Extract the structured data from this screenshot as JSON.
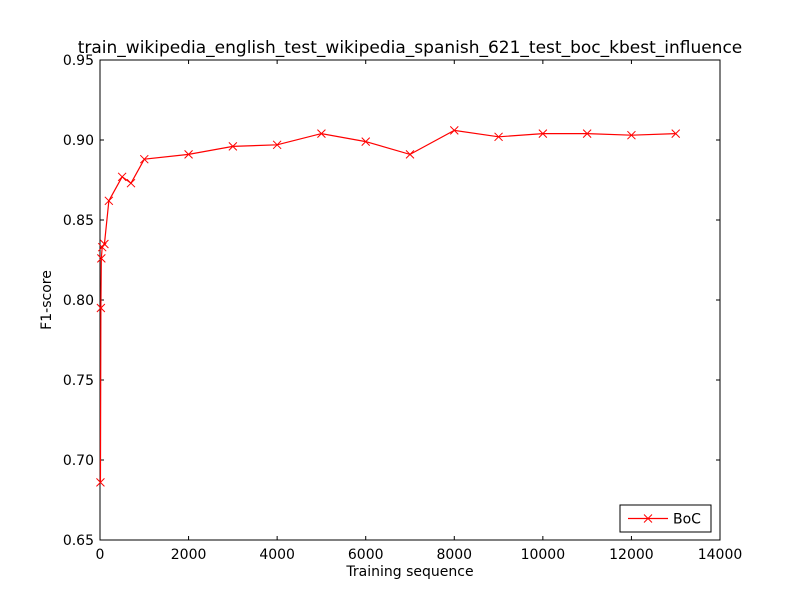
{
  "chart_data": {
    "type": "line",
    "title": "train_wikipedia_english_test_wikipedia_spanish_621_test_boc_kbest_influence",
    "xlabel": "Training sequence",
    "ylabel": "F1-score",
    "xlim": [
      0,
      14000
    ],
    "ylim": [
      0.65,
      0.95
    ],
    "xticks": [
      0,
      2000,
      4000,
      6000,
      8000,
      10000,
      12000,
      14000
    ],
    "xtick_labels": [
      "0",
      "2000",
      "4000",
      "6000",
      "8000",
      "10000",
      "12000",
      "14000"
    ],
    "yticks": [
      0.65,
      0.7,
      0.75,
      0.8,
      0.85,
      0.9,
      0.95
    ],
    "ytick_labels": [
      "0.65",
      "0.70",
      "0.75",
      "0.80",
      "0.85",
      "0.90",
      "0.95"
    ],
    "grid": false,
    "legend_position": "lower-right",
    "series": [
      {
        "name": "BoC",
        "color": "#ff0000",
        "marker": "x",
        "x": [
          10,
          20,
          30,
          50,
          100,
          200,
          500,
          700,
          1000,
          2000,
          3000,
          4000,
          5000,
          6000,
          7000,
          8000,
          9000,
          10000,
          11000,
          12000,
          13000
        ],
        "y": [
          0.686,
          0.795,
          0.826,
          0.833,
          0.835,
          0.862,
          0.877,
          0.873,
          0.888,
          0.891,
          0.896,
          0.897,
          0.904,
          0.899,
          0.891,
          0.906,
          0.902,
          0.904,
          0.904,
          0.903,
          0.904
        ]
      }
    ]
  }
}
